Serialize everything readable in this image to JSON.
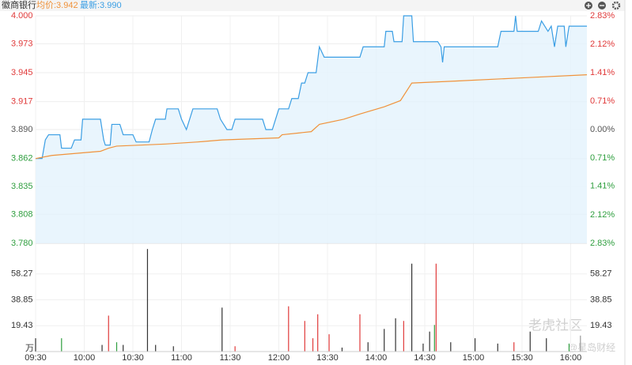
{
  "chart_data": [
    {
      "type": "line",
      "title": "徽商银行",
      "legend": [
        {
          "label": "均价:3.942",
          "color": "#f0923a"
        },
        {
          "label": "最新:3.990",
          "color": "#3a9ee4"
        }
      ],
      "xlim": [
        0,
        340
      ],
      "xticks": [
        {
          "value": 0,
          "label": "09:30"
        },
        {
          "value": 30,
          "label": "10:00"
        },
        {
          "value": 60,
          "label": "10:30"
        },
        {
          "value": 90,
          "label": "11:00"
        },
        {
          "value": 120,
          "label": "11:30"
        },
        {
          "value": 150,
          "label": "12:00"
        },
        {
          "value": 180,
          "label": "13:30"
        },
        {
          "value": 210,
          "label": "14:00"
        },
        {
          "value": 240,
          "label": "14:30"
        },
        {
          "value": 270,
          "label": "15:00"
        },
        {
          "value": 300,
          "label": "15:30"
        },
        {
          "value": 330,
          "label": "16:00"
        }
      ],
      "ylim": [
        3.78,
        4.0
      ],
      "yticks": [
        {
          "value": 3.78,
          "label": "3.780"
        },
        {
          "value": 3.808,
          "label": "3.808"
        },
        {
          "value": 3.835,
          "label": "3.835"
        },
        {
          "value": 3.862,
          "label": "3.862"
        },
        {
          "value": 3.89,
          "label": "3.890"
        },
        {
          "value": 3.917,
          "label": "3.917"
        },
        {
          "value": 3.945,
          "label": "3.945"
        },
        {
          "value": 3.973,
          "label": "3.973"
        },
        {
          "value": 4.0,
          "label": "4.000"
        }
      ],
      "y2lim": [
        -2.83,
        2.83
      ],
      "y2ticks": [
        {
          "value": -2.83,
          "label": "2.83%"
        },
        {
          "value": -2.12,
          "label": "2.12%"
        },
        {
          "value": -1.41,
          "label": "1.41%"
        },
        {
          "value": -0.71,
          "label": "0.71%"
        },
        {
          "value": 0,
          "label": "0.00%"
        },
        {
          "value": 0.71,
          "label": "0.71%"
        },
        {
          "value": 1.41,
          "label": "1.41%"
        },
        {
          "value": 2.12,
          "label": "2.12%"
        },
        {
          "value": 2.83,
          "label": "2.83%"
        }
      ],
      "tick_colors": {
        "up": "#e03a3a",
        "flat": "#555555",
        "down": "#2e9e3e"
      },
      "grid": true,
      "series": [
        {
          "color": "#3a9ee4",
          "area": "#e3f2fd",
          "x": [
            0,
            4,
            6,
            8,
            15,
            16,
            22,
            24,
            28,
            29,
            40,
            42,
            43,
            46,
            47,
            52,
            54,
            60,
            62,
            70,
            72,
            74,
            80,
            81,
            88,
            90,
            93,
            95,
            97,
            112,
            114,
            118,
            121,
            123,
            140,
            142,
            146,
            148,
            150,
            156,
            158,
            162,
            164,
            166,
            168,
            173,
            175,
            178,
            200,
            202,
            215,
            216,
            220,
            221,
            226,
            227,
            232,
            233,
            240,
            248,
            250,
            251,
            252,
            285,
            287,
            295,
            296,
            297,
            310,
            312,
            316,
            318,
            320,
            322,
            326,
            327,
            329,
            340
          ],
          "values": [
            3.862,
            3.862,
            3.88,
            3.885,
            3.885,
            3.872,
            3.872,
            3.88,
            3.88,
            3.9,
            3.9,
            3.88,
            3.875,
            3.875,
            3.895,
            3.895,
            3.885,
            3.885,
            3.878,
            3.878,
            3.89,
            3.9,
            3.9,
            3.91,
            3.91,
            3.9,
            3.89,
            3.9,
            3.91,
            3.91,
            3.9,
            3.89,
            3.89,
            3.9,
            3.9,
            3.89,
            3.89,
            3.9,
            3.91,
            3.91,
            3.92,
            3.92,
            3.935,
            3.935,
            3.945,
            3.945,
            3.97,
            3.96,
            3.96,
            3.97,
            3.97,
            3.985,
            3.985,
            3.975,
            3.975,
            4.0,
            4.0,
            3.975,
            3.975,
            3.975,
            3.97,
            3.955,
            3.97,
            3.97,
            3.985,
            3.985,
            4.0,
            3.985,
            3.985,
            3.995,
            3.985,
            3.99,
            3.97,
            3.99,
            3.99,
            3.97,
            3.99,
            3.99
          ]
        },
        {
          "color": "#f0923a",
          "x": [
            0,
            10,
            40,
            45,
            50,
            80,
            100,
            115,
            150,
            152,
            170,
            175,
            190,
            200,
            215,
            225,
            232,
            260,
            300,
            340
          ],
          "values": [
            3.862,
            3.865,
            3.869,
            3.872,
            3.874,
            3.876,
            3.878,
            3.88,
            3.882,
            3.885,
            3.888,
            3.895,
            3.9,
            3.905,
            3.912,
            3.918,
            3.935,
            3.937,
            3.94,
            3.943
          ]
        }
      ]
    },
    {
      "type": "bar",
      "unit": "万",
      "xlim": [
        0,
        340
      ],
      "ylim": [
        0,
        77.7
      ],
      "yticks": [
        19.43,
        38.85,
        58.27
      ],
      "x": [
        0,
        16,
        41,
        45,
        50,
        54,
        69,
        74,
        85,
        115,
        123,
        156,
        166,
        171,
        174,
        181,
        189,
        200,
        205,
        215,
        222,
        227,
        232,
        239,
        243,
        246,
        247,
        256,
        271,
        285,
        295,
        305,
        315,
        329,
        336
      ],
      "values": [
        10,
        10,
        5,
        27,
        7,
        5,
        77,
        5,
        4,
        33,
        4,
        34,
        23,
        10,
        28,
        13,
        3,
        28,
        7,
        17,
        25,
        23,
        66,
        6,
        15,
        20,
        66,
        7,
        10,
        6,
        7,
        15,
        10,
        6,
        12
      ],
      "colors": [
        "#333",
        "#2e9e3e",
        "#333",
        "#e03a3a",
        "#2e9e3e",
        "#333",
        "#333",
        "#333",
        "#333",
        "#333",
        "#e03a3a",
        "#e03a3a",
        "#e03a3a",
        "#e03a3a",
        "#e03a3a",
        "#e03a3a",
        "#333",
        "#e03a3a",
        "#333",
        "#333",
        "#333",
        "#e03a3a",
        "#333",
        "#333",
        "#333",
        "#2e9e3e",
        "#e03a3a",
        "#333",
        "#333",
        "#333",
        "#e03a3a",
        "#333",
        "#333",
        "#2e9e3e",
        "#999"
      ]
    }
  ],
  "watermark": [
    "老虎社区",
    "@星岛财经"
  ]
}
